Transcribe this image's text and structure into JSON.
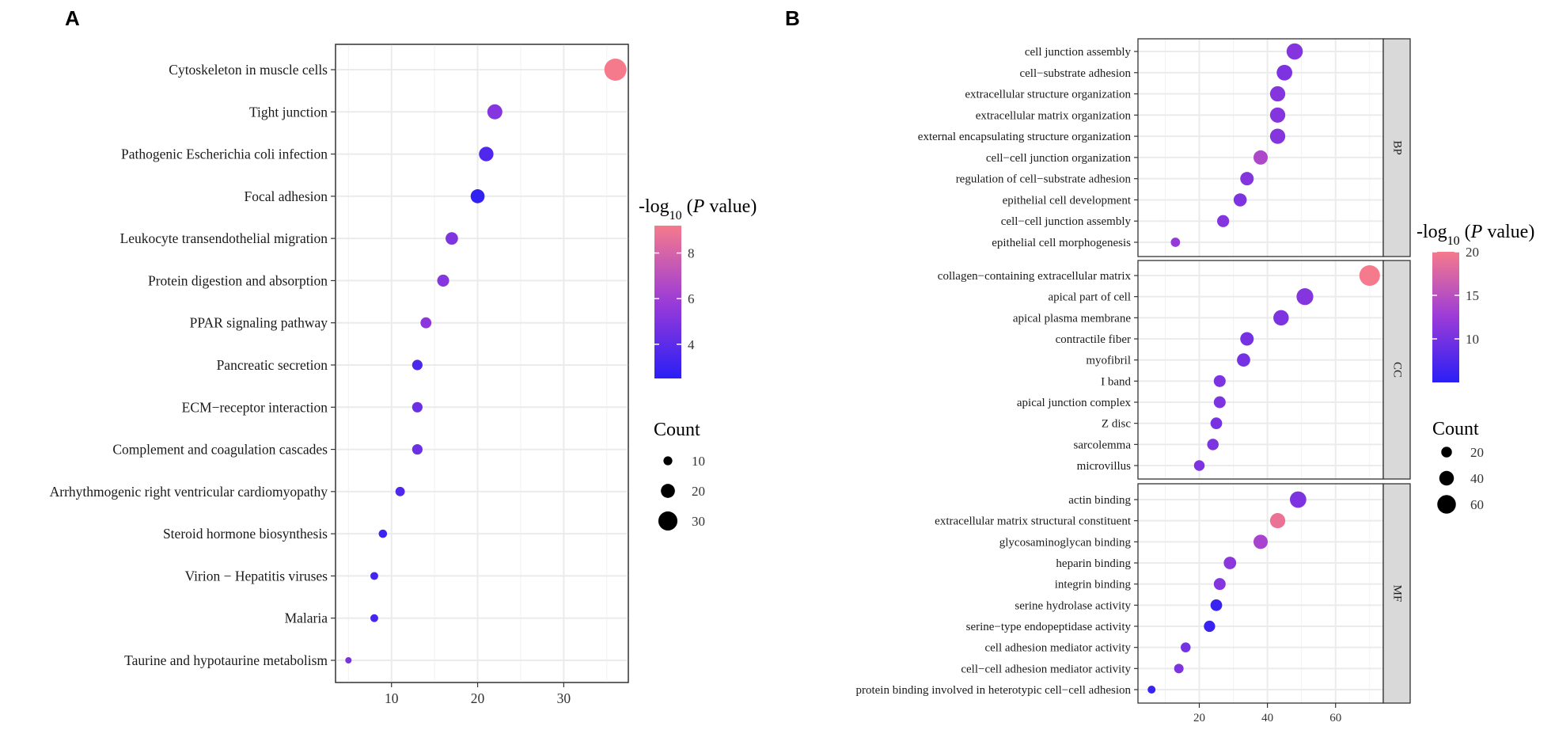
{
  "panel_labels": {
    "a": "A",
    "b": "B"
  },
  "colors": {
    "low": "#2a1ff5",
    "mid": "#9b3bd8",
    "high": "#f57a8c",
    "grid": "#ebebeb",
    "strip": "#d9d9d9"
  },
  "chart_data": [
    {
      "id": "A",
      "type": "scatter",
      "xlabel": "",
      "ylabel": "",
      "xlim": [
        3.5,
        37.5
      ],
      "x_ticks": [
        10,
        20,
        30
      ],
      "color_legend": {
        "title_prefix": "-log",
        "title_sub": "10",
        "title_p": "P",
        "title_suffix": " value)",
        "title_open": " (",
        "range": [
          2.5,
          9.2
        ],
        "ticks": [
          4,
          6,
          8
        ]
      },
      "size_legend": {
        "title": "Count",
        "values": [
          10,
          20,
          30
        ]
      },
      "legend_position": "right",
      "grid": true,
      "points": [
        {
          "term": "Cytoskeleton in muscle cells",
          "count": 36,
          "neglogp": 9.2
        },
        {
          "term": "Tight junction",
          "count": 22,
          "neglogp": 5.2
        },
        {
          "term": "Pathogenic Escherichia coli infection",
          "count": 21,
          "neglogp": 3.6
        },
        {
          "term": "Focal adhesion",
          "count": 20,
          "neglogp": 2.7
        },
        {
          "term": "Leukocyte transendothelial migration",
          "count": 17,
          "neglogp": 5.0
        },
        {
          "term": "Protein digestion and absorption",
          "count": 16,
          "neglogp": 5.2
        },
        {
          "term": "PPAR signaling pathway",
          "count": 14,
          "neglogp": 5.4
        },
        {
          "term": "Pancreatic secretion",
          "count": 13,
          "neglogp": 3.5
        },
        {
          "term": "ECM−receptor interaction",
          "count": 13,
          "neglogp": 4.4
        },
        {
          "term": "Complement and coagulation cascades",
          "count": 13,
          "neglogp": 4.5
        },
        {
          "term": "Arrhythmogenic right ventricular cardiomyopathy",
          "count": 11,
          "neglogp": 3.6
        },
        {
          "term": "Steroid hormone biosynthesis",
          "count": 9,
          "neglogp": 3.0
        },
        {
          "term": "Virion − Hepatitis viruses",
          "count": 8,
          "neglogp": 3.2
        },
        {
          "term": "Malaria",
          "count": 8,
          "neglogp": 3.3
        },
        {
          "term": "Taurine and hypotaurine metabolism",
          "count": 5,
          "neglogp": 4.8
        }
      ]
    },
    {
      "id": "B",
      "type": "scatter",
      "xlabel": "",
      "ylabel": "",
      "xlim": [
        2,
        74
      ],
      "x_ticks": [
        20,
        40,
        60
      ],
      "color_legend": {
        "title_prefix": "-log",
        "title_sub": "10",
        "title_p": "P",
        "title_suffix": " value)",
        "title_open": " (",
        "range": [
          5,
          20
        ],
        "ticks": [
          10,
          15,
          20
        ]
      },
      "size_legend": {
        "title": "Count",
        "values": [
          20,
          40,
          60
        ]
      },
      "legend_position": "right",
      "grid": true,
      "facets": [
        {
          "name": "BP",
          "points": [
            {
              "term": "cell junction assembly",
              "count": 48,
              "neglogp": 11
            },
            {
              "term": "cell−substrate adhesion",
              "count": 45,
              "neglogp": 10.5
            },
            {
              "term": "extracellular structure organization",
              "count": 43,
              "neglogp": 11
            },
            {
              "term": "extracellular matrix organization",
              "count": 43,
              "neglogp": 11
            },
            {
              "term": "external encapsulating structure organization",
              "count": 43,
              "neglogp": 11
            },
            {
              "term": "cell−cell junction organization",
              "count": 38,
              "neglogp": 14
            },
            {
              "term": "regulation of cell−substrate adhesion",
              "count": 34,
              "neglogp": 11
            },
            {
              "term": "epithelial cell development",
              "count": 32,
              "neglogp": 10.5
            },
            {
              "term": "cell−cell junction assembly",
              "count": 27,
              "neglogp": 11
            },
            {
              "term": "epithelial cell morphogenesis",
              "count": 13,
              "neglogp": 12
            }
          ]
        },
        {
          "name": "CC",
          "points": [
            {
              "term": "collagen−containing extracellular matrix",
              "count": 70,
              "neglogp": 20
            },
            {
              "term": "apical part of cell",
              "count": 51,
              "neglogp": 11
            },
            {
              "term": "apical plasma membrane",
              "count": 44,
              "neglogp": 10.5
            },
            {
              "term": "contractile fiber",
              "count": 34,
              "neglogp": 10
            },
            {
              "term": "myofibril",
              "count": 33,
              "neglogp": 10
            },
            {
              "term": "I band",
              "count": 26,
              "neglogp": 10.5
            },
            {
              "term": "apical junction complex",
              "count": 26,
              "neglogp": 10.5
            },
            {
              "term": "Z disc",
              "count": 25,
              "neglogp": 10.2
            },
            {
              "term": "sarcolemma",
              "count": 24,
              "neglogp": 10.5
            },
            {
              "term": "microvillus",
              "count": 20,
              "neglogp": 10.5
            }
          ]
        },
        {
          "name": "MF",
          "points": [
            {
              "term": "actin binding",
              "count": 49,
              "neglogp": 10.5
            },
            {
              "term": "extracellular matrix structural constituent",
              "count": 43,
              "neglogp": 19
            },
            {
              "term": "glycosaminoglycan binding",
              "count": 38,
              "neglogp": 13.5
            },
            {
              "term": "heparin binding",
              "count": 29,
              "neglogp": 11.5
            },
            {
              "term": "integrin binding",
              "count": 26,
              "neglogp": 11
            },
            {
              "term": "serine hydrolase activity",
              "count": 25,
              "neglogp": 6
            },
            {
              "term": "serine−type endopeptidase activity",
              "count": 23,
              "neglogp": 6
            },
            {
              "term": "cell adhesion mediator activity",
              "count": 16,
              "neglogp": 10
            },
            {
              "term": "cell−cell adhesion mediator activity",
              "count": 14,
              "neglogp": 10.5
            },
            {
              "term": "protein binding involved in heterotypic cell−cell adhesion",
              "count": 6,
              "neglogp": 6
            }
          ]
        }
      ]
    }
  ]
}
